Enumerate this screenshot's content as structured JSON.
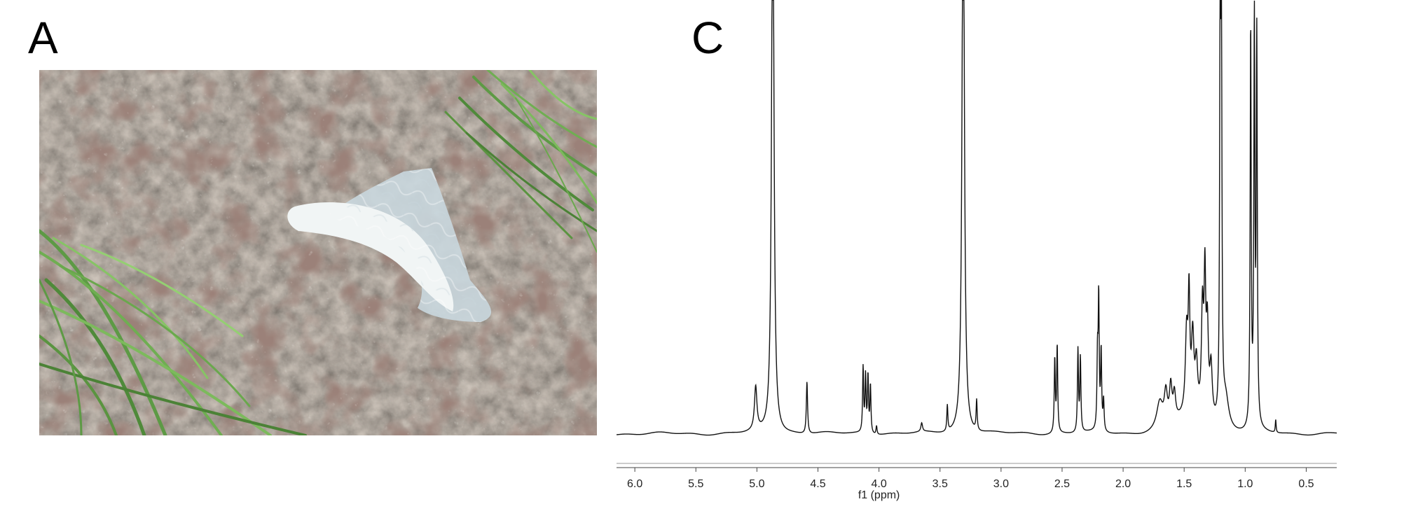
{
  "panels": {
    "a_label": "A",
    "c_label": "C"
  },
  "photo": {
    "subject": "white plastic fragment on rocky seabed with algae and seagrass",
    "colors": {
      "rock": "#6e6a62",
      "seagrass": "#4f8a3a",
      "algae": "#5a3a32",
      "plastic": "#e6eef2"
    }
  },
  "chart_data": {
    "type": "line",
    "xlabel": "f1 (ppm)",
    "ylabel": "",
    "title": "",
    "x_reversed": true,
    "xlim": [
      6.15,
      0.25
    ],
    "ylim": [
      0,
      100
    ],
    "x_ticks": [
      6.0,
      5.5,
      5.0,
      4.5,
      4.0,
      3.5,
      3.0,
      2.5,
      2.0,
      1.5,
      1.0,
      0.5
    ],
    "x_tick_labels": [
      "6.0",
      "5.5",
      "5.0",
      "4.5",
      "4.0",
      "3.5",
      "3.0",
      "2.5",
      "2.0",
      "1.5",
      "1.0",
      "0.5"
    ],
    "baseline": 2,
    "line_color": "#111111",
    "peaks": [
      {
        "ppm": 5.01,
        "height": 10,
        "width": 0.012
      },
      {
        "ppm": 4.87,
        "height": 140,
        "width": 0.011
      },
      {
        "ppm": 4.59,
        "height": 12,
        "width": 0.006
      },
      {
        "ppm": 4.13,
        "height": 15,
        "width": 0.005
      },
      {
        "ppm": 4.11,
        "height": 13,
        "width": 0.005
      },
      {
        "ppm": 4.09,
        "height": 13,
        "width": 0.005
      },
      {
        "ppm": 4.07,
        "height": 11,
        "width": 0.005
      },
      {
        "ppm": 4.02,
        "height": 2,
        "width": 0.005
      },
      {
        "ppm": 3.65,
        "height": 2,
        "width": 0.008
      },
      {
        "ppm": 3.44,
        "height": 6,
        "width": 0.005
      },
      {
        "ppm": 3.31,
        "height": 140,
        "width": 0.011
      },
      {
        "ppm": 3.2,
        "height": 7,
        "width": 0.005
      },
      {
        "ppm": 2.56,
        "height": 17,
        "width": 0.005
      },
      {
        "ppm": 2.54,
        "height": 20,
        "width": 0.005
      },
      {
        "ppm": 2.37,
        "height": 19,
        "width": 0.005
      },
      {
        "ppm": 2.35,
        "height": 17,
        "width": 0.005
      },
      {
        "ppm": 2.21,
        "height": 16,
        "width": 0.005
      },
      {
        "ppm": 2.2,
        "height": 30,
        "width": 0.005
      },
      {
        "ppm": 2.18,
        "height": 18,
        "width": 0.005
      },
      {
        "ppm": 2.16,
        "height": 7,
        "width": 0.005
      },
      {
        "ppm": 1.7,
        "height": 6,
        "width": 0.03
      },
      {
        "ppm": 1.65,
        "height": 7,
        "width": 0.015
      },
      {
        "ppm": 1.61,
        "height": 8,
        "width": 0.012
      },
      {
        "ppm": 1.58,
        "height": 6,
        "width": 0.012
      },
      {
        "ppm": 1.48,
        "height": 18,
        "width": 0.012
      },
      {
        "ppm": 1.46,
        "height": 25,
        "width": 0.008
      },
      {
        "ppm": 1.43,
        "height": 17,
        "width": 0.012
      },
      {
        "ppm": 1.4,
        "height": 11,
        "width": 0.012
      },
      {
        "ppm": 1.35,
        "height": 24,
        "width": 0.01
      },
      {
        "ppm": 1.33,
        "height": 30,
        "width": 0.008
      },
      {
        "ppm": 1.31,
        "height": 20,
        "width": 0.01
      },
      {
        "ppm": 1.28,
        "height": 12,
        "width": 0.012
      },
      {
        "ppm": 1.205,
        "height": 93,
        "width": 0.005
      },
      {
        "ppm": 1.195,
        "height": 90,
        "width": 0.005
      },
      {
        "ppm": 1.16,
        "height": 7,
        "width": 0.03
      },
      {
        "ppm": 0.955,
        "height": 92,
        "width": 0.005
      },
      {
        "ppm": 0.925,
        "height": 92,
        "width": 0.005
      },
      {
        "ppm": 0.905,
        "height": 89,
        "width": 0.005
      },
      {
        "ppm": 0.75,
        "height": 3,
        "width": 0.004
      }
    ],
    "clipped_peaks_ppm": [
      4.87,
      3.31
    ]
  }
}
